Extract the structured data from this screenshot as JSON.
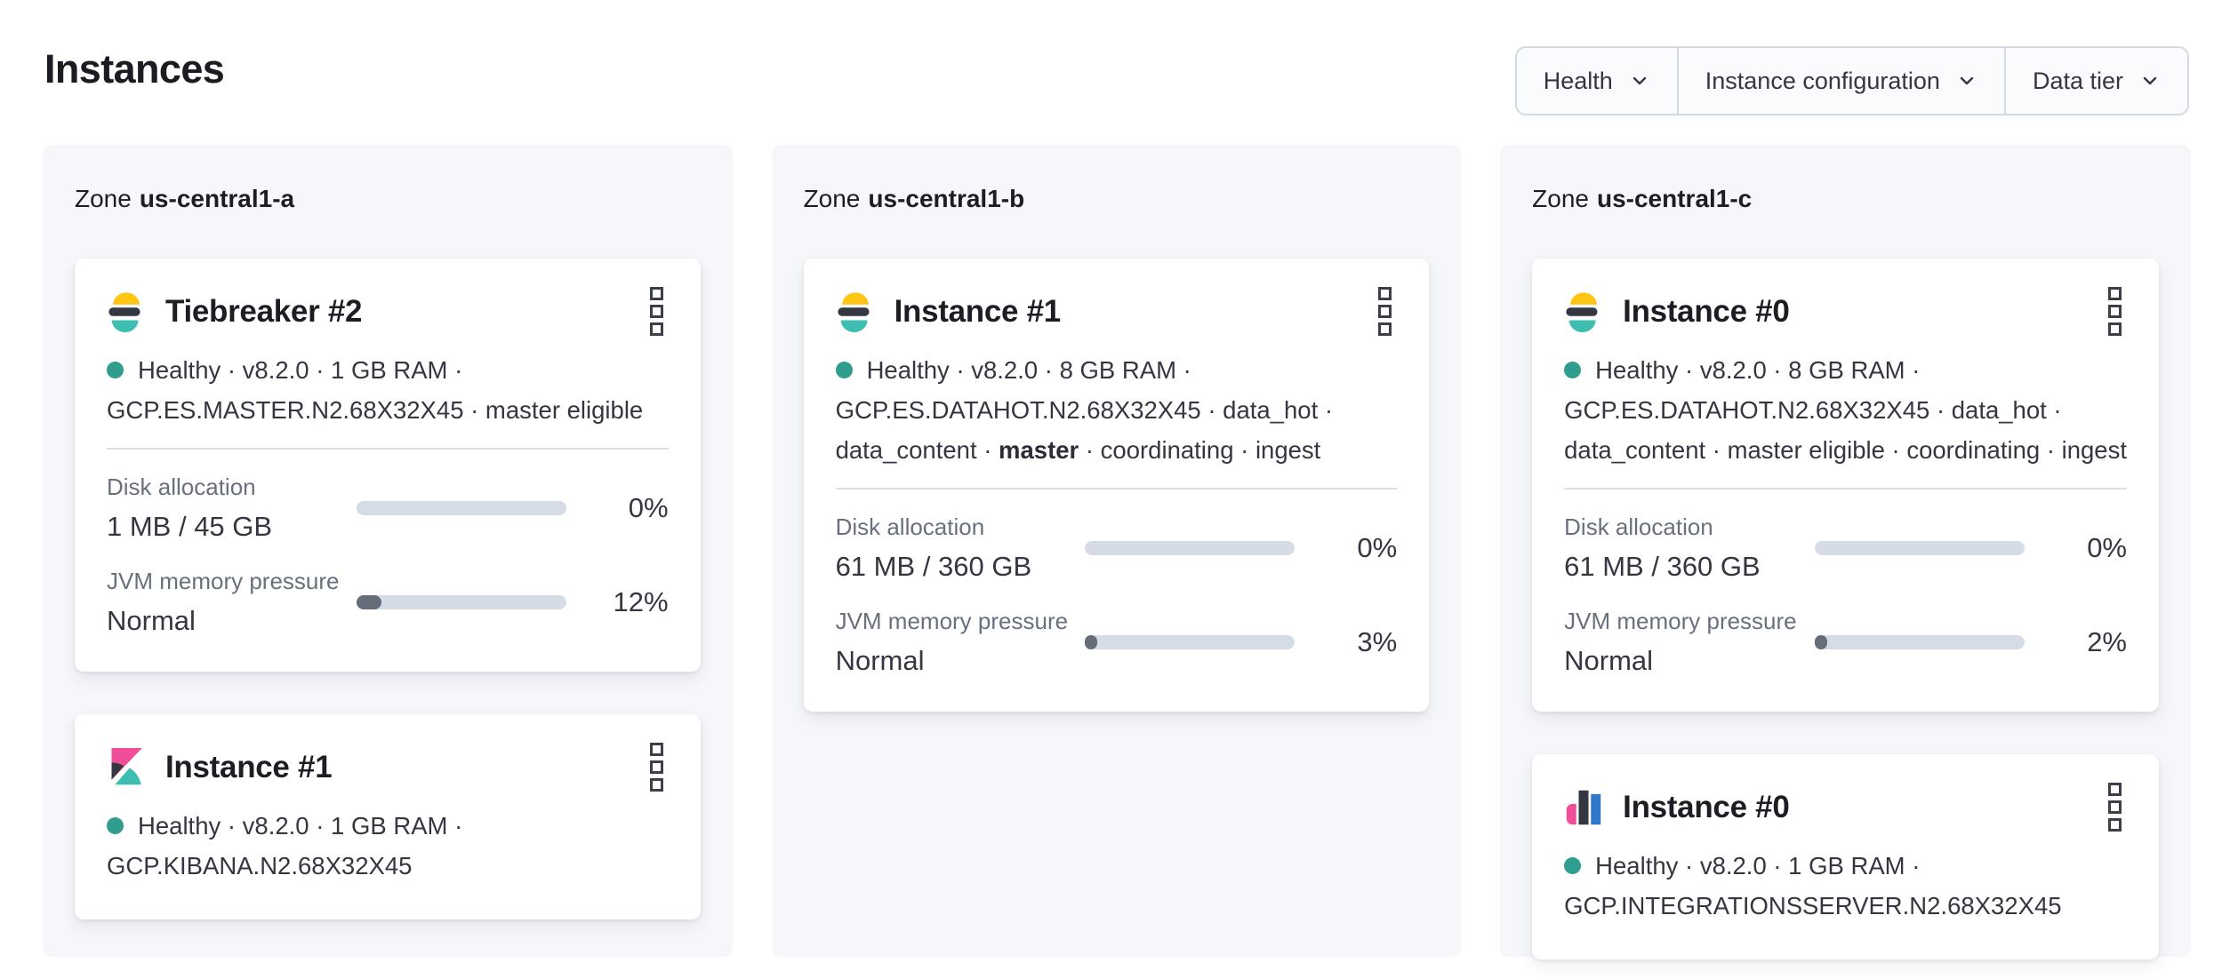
{
  "header": {
    "title": "Instances"
  },
  "filters": [
    {
      "label": "Health"
    },
    {
      "label": "Instance configuration"
    },
    {
      "label": "Data tier"
    }
  ],
  "colors": {
    "healthy_dot": "#2F9E8F",
    "bar_track": "#D6DCE6",
    "bar_fill": "#666D78",
    "zone_panel_bg": "#F5F7FA",
    "brand_yellow": "#FEC514",
    "brand_teal": "#3EBEB0",
    "brand_dark": "#343741",
    "brand_pink": "#F04E98",
    "brand_blue": "#3177CC"
  },
  "zones": [
    {
      "label_prefix": "Zone",
      "name": "us-central1-a",
      "cards": [
        {
          "product_icon": "elasticsearch",
          "title": "Tiebreaker #2",
          "status_line_1": "Healthy · v8.2.0 · 1 GB RAM ·",
          "status_line_2": "GCP.ES.MASTER.N2.68X32X45 · master eligible",
          "metrics": [
            {
              "label": "Disk allocation",
              "value": "1 MB / 45 GB",
              "percent": 0,
              "percent_label": "0%"
            },
            {
              "label": "JVM memory pressure",
              "value": "Normal",
              "percent": 12,
              "percent_label": "12%"
            }
          ]
        },
        {
          "product_icon": "kibana",
          "title": "Instance #1",
          "status_line_1": "Healthy · v8.2.0 · 1 GB RAM ·",
          "status_line_2": "GCP.KIBANA.N2.68X32X45"
        }
      ]
    },
    {
      "label_prefix": "Zone",
      "name": "us-central1-b",
      "cards": [
        {
          "product_icon": "elasticsearch",
          "title": "Instance #1",
          "status_line_1": "Healthy · v8.2.0 · 8 GB RAM ·",
          "status_line_2": "GCP.ES.DATAHOT.N2.68X32X45 · data_hot ·",
          "status_line_3_prefix": "data_content · ",
          "status_line_3_bold": "master",
          "status_line_3_suffix": " · coordinating · ingest",
          "metrics": [
            {
              "label": "Disk allocation",
              "value": "61 MB / 360 GB",
              "percent": 0,
              "percent_label": "0%"
            },
            {
              "label": "JVM memory pressure",
              "value": "Normal",
              "percent": 3,
              "percent_label": "3%"
            }
          ]
        }
      ]
    },
    {
      "label_prefix": "Zone",
      "name": "us-central1-c",
      "cards": [
        {
          "product_icon": "elasticsearch",
          "title": "Instance #0",
          "status_line_1": "Healthy · v8.2.0 · 8 GB RAM ·",
          "status_line_2": "GCP.ES.DATAHOT.N2.68X32X45 · data_hot ·",
          "status_line_3": "data_content · master eligible · coordinating · ingest",
          "metrics": [
            {
              "label": "Disk allocation",
              "value": "61 MB / 360 GB",
              "percent": 0,
              "percent_label": "0%"
            },
            {
              "label": "JVM memory pressure",
              "value": "Normal",
              "percent": 2,
              "percent_label": "2%"
            }
          ]
        },
        {
          "product_icon": "integrations-server",
          "title": "Instance #0",
          "status_line_1": "Healthy · v8.2.0 · 1 GB RAM ·",
          "status_line_2": "GCP.INTEGRATIONSSERVER.N2.68X32X45"
        }
      ]
    }
  ]
}
